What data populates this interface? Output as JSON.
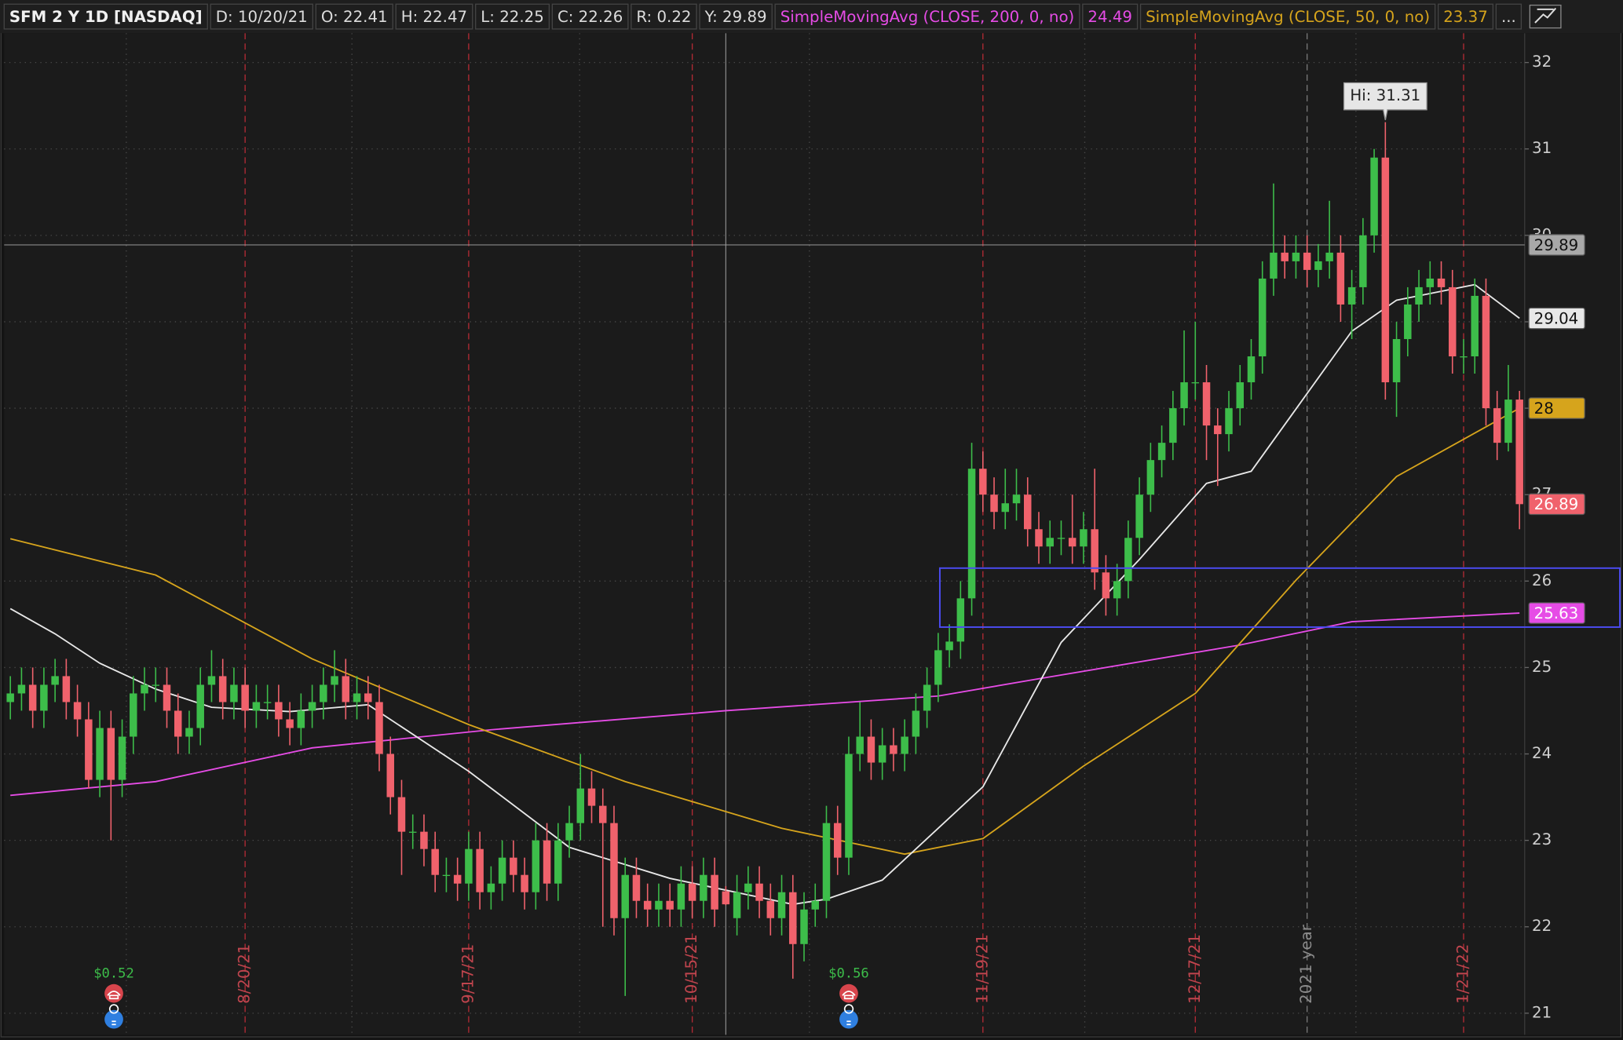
{
  "chart_data": {
    "type": "candlestick",
    "header": {
      "symbol": "SFM 2 Y 1D [NASDAQ]",
      "fields": [
        "D: 10/20/21",
        "O: 22.41",
        "H: 22.47",
        "L: 22.25",
        "C: 22.26",
        "R: 0.22",
        "Y: 29.89"
      ],
      "more": "..."
    },
    "categories": [
      null,
      null,
      null,
      null,
      null,
      null,
      null,
      null,
      null,
      null,
      null,
      null,
      null,
      null,
      null,
      null,
      null,
      null,
      null,
      null,
      null,
      "8/20/21",
      null,
      null,
      null,
      null,
      null,
      null,
      null,
      null,
      null,
      null,
      null,
      null,
      null,
      null,
      null,
      null,
      null,
      null,
      null,
      "9/17/21",
      null,
      null,
      null,
      null,
      null,
      null,
      null,
      null,
      null,
      null,
      null,
      null,
      null,
      null,
      null,
      null,
      null,
      null,
      null,
      "10/15/21",
      null,
      null,
      null,
      null,
      null,
      null,
      null,
      null,
      null,
      null,
      null,
      null,
      null,
      null,
      null,
      null,
      null,
      null,
      null,
      null,
      null,
      null,
      null,
      null,
      null,
      "11/19/21",
      null,
      null,
      null,
      null,
      null,
      null,
      null,
      null,
      null,
      null,
      null,
      null,
      null,
      null,
      null,
      null,
      null,
      null,
      "12/17/21",
      null,
      null,
      null,
      null,
      null,
      null,
      null,
      null,
      null,
      "2021 year",
      null,
      null,
      null,
      null,
      null,
      null,
      null,
      null,
      null,
      null,
      null,
      null,
      null,
      "1/21/22",
      null,
      null,
      null,
      null,
      null
    ],
    "open": [
      24.6,
      24.7,
      24.8,
      24.5,
      24.8,
      24.9,
      24.6,
      24.4,
      23.7,
      24.3,
      23.7,
      24.2,
      24.7,
      24.8,
      24.8,
      24.5,
      24.2,
      24.3,
      24.8,
      24.9,
      24.6,
      24.8,
      24.5,
      24.6,
      24.6,
      24.4,
      24.3,
      24.5,
      24.6,
      24.8,
      24.9,
      24.6,
      24.7,
      24.6,
      24.0,
      23.5,
      23.1,
      23.1,
      22.9,
      22.6,
      22.6,
      22.5,
      22.9,
      22.4,
      22.5,
      22.8,
      22.6,
      22.4,
      23.0,
      22.5,
      23.0,
      23.2,
      23.6,
      23.4,
      23.2,
      22.1,
      22.6,
      22.3,
      22.2,
      22.3,
      22.2,
      22.5,
      22.3,
      22.6,
      22.41,
      22.1,
      22.4,
      22.5,
      22.3,
      22.1,
      22.4,
      21.8,
      22.2,
      22.3,
      23.2,
      22.8,
      24.0,
      24.2,
      23.9,
      24.1,
      24.0,
      24.2,
      24.5,
      24.8,
      25.2,
      25.3,
      25.8,
      27.3,
      27.0,
      26.8,
      26.9,
      27.0,
      26.6,
      26.4,
      26.5,
      26.5,
      26.4,
      26.6,
      26.1,
      25.8,
      26.0,
      26.5,
      27.0,
      27.4,
      27.6,
      28.0,
      28.3,
      28.3,
      27.8,
      27.7,
      28.0,
      28.3,
      28.6,
      29.5,
      29.8,
      29.7,
      29.8,
      29.6,
      29.7,
      29.8,
      29.2,
      29.4,
      30.0,
      30.9,
      28.3,
      28.8,
      29.2,
      29.4,
      29.5,
      29.4,
      28.6,
      28.6,
      29.3,
      28.0,
      27.6,
      28.1
    ],
    "high": [
      24.9,
      25.0,
      25.0,
      25.0,
      25.1,
      25.1,
      24.8,
      24.6,
      24.5,
      24.5,
      24.4,
      24.9,
      25.0,
      25.0,
      25.0,
      24.7,
      24.5,
      25.0,
      25.2,
      25.1,
      25.0,
      25.0,
      24.8,
      24.8,
      24.8,
      24.6,
      24.7,
      24.8,
      25.0,
      25.2,
      25.1,
      24.9,
      24.9,
      24.8,
      24.2,
      23.7,
      23.3,
      23.3,
      23.1,
      22.8,
      22.8,
      23.1,
      23.1,
      22.7,
      23.0,
      23.0,
      22.8,
      23.2,
      23.2,
      23.2,
      23.4,
      24.0,
      23.8,
      23.6,
      23.4,
      22.8,
      22.8,
      22.5,
      22.5,
      22.5,
      22.7,
      22.7,
      22.8,
      22.8,
      22.47,
      22.6,
      22.7,
      22.7,
      22.5,
      22.6,
      22.6,
      22.4,
      22.5,
      23.4,
      23.4,
      24.2,
      24.6,
      24.4,
      24.3,
      24.3,
      24.4,
      24.7,
      25.0,
      25.4,
      25.5,
      26.0,
      27.6,
      27.5,
      27.2,
      27.3,
      27.3,
      27.2,
      26.8,
      26.7,
      26.7,
      27.0,
      26.8,
      27.3,
      26.3,
      26.2,
      26.7,
      27.2,
      27.6,
      27.8,
      28.2,
      28.9,
      29.0,
      28.5,
      28.0,
      28.2,
      28.5,
      28.8,
      29.7,
      30.6,
      30.0,
      30.0,
      30.0,
      29.9,
      30.4,
      30.0,
      29.6,
      30.2,
      31.0,
      31.31,
      29.0,
      29.4,
      29.6,
      29.7,
      29.7,
      29.6,
      28.8,
      29.5,
      29.5,
      28.2,
      28.5,
      28.2
    ],
    "low": [
      24.4,
      24.5,
      24.3,
      24.3,
      24.6,
      24.4,
      24.2,
      23.6,
      23.5,
      23.0,
      23.5,
      24.0,
      24.5,
      24.6,
      24.3,
      24.0,
      24.0,
      24.1,
      24.6,
      24.4,
      24.4,
      24.3,
      24.3,
      24.4,
      24.2,
      24.1,
      24.1,
      24.3,
      24.4,
      24.6,
      24.4,
      24.4,
      24.4,
      23.8,
      23.3,
      22.6,
      22.9,
      22.7,
      22.4,
      22.4,
      22.3,
      22.3,
      22.2,
      22.2,
      22.3,
      22.4,
      22.2,
      22.2,
      22.3,
      22.3,
      22.8,
      23.0,
      23.2,
      22.0,
      21.9,
      21.2,
      22.1,
      22.0,
      22.0,
      22.0,
      22.0,
      22.1,
      22.1,
      22.0,
      22.25,
      21.9,
      22.2,
      22.1,
      21.9,
      21.9,
      21.4,
      21.6,
      22.0,
      22.1,
      22.6,
      22.6,
      23.8,
      23.7,
      23.7,
      23.8,
      23.8,
      24.0,
      24.3,
      24.6,
      25.0,
      25.1,
      25.6,
      26.8,
      26.6,
      26.6,
      26.7,
      26.4,
      26.2,
      26.2,
      26.3,
      26.2,
      26.2,
      25.9,
      25.6,
      25.6,
      25.8,
      26.3,
      26.8,
      27.2,
      27.4,
      27.8,
      28.1,
      27.4,
      27.1,
      27.5,
      27.8,
      28.1,
      28.4,
      29.3,
      29.5,
      29.5,
      29.4,
      29.4,
      29.5,
      29.0,
      28.8,
      29.2,
      29.8,
      28.1,
      27.9,
      28.6,
      29.0,
      29.2,
      29.2,
      28.4,
      28.4,
      28.4,
      27.8,
      27.4,
      27.5,
      26.6
    ],
    "close": [
      24.7,
      24.8,
      24.5,
      24.8,
      24.9,
      24.6,
      24.4,
      23.7,
      24.3,
      23.7,
      24.2,
      24.7,
      24.8,
      24.8,
      24.5,
      24.2,
      24.3,
      24.8,
      24.9,
      24.6,
      24.8,
      24.5,
      24.6,
      24.6,
      24.4,
      24.3,
      24.5,
      24.6,
      24.8,
      24.9,
      24.6,
      24.7,
      24.6,
      24.0,
      23.5,
      23.1,
      23.1,
      22.9,
      22.6,
      22.6,
      22.5,
      22.9,
      22.4,
      22.5,
      22.8,
      22.6,
      22.4,
      23.0,
      22.5,
      23.0,
      23.2,
      23.6,
      23.4,
      23.2,
      22.1,
      22.6,
      22.3,
      22.2,
      22.3,
      22.2,
      22.5,
      22.3,
      22.6,
      22.2,
      22.26,
      22.4,
      22.5,
      22.3,
      22.1,
      22.4,
      21.8,
      22.2,
      22.3,
      23.2,
      22.8,
      24.0,
      24.2,
      23.9,
      24.1,
      24.0,
      24.2,
      24.5,
      24.8,
      25.2,
      25.3,
      25.8,
      27.3,
      27.0,
      26.8,
      26.9,
      27.0,
      26.6,
      26.4,
      26.5,
      26.5,
      26.4,
      26.6,
      26.1,
      25.8,
      26.0,
      26.5,
      27.0,
      27.4,
      27.6,
      28.0,
      28.3,
      28.3,
      27.8,
      27.7,
      28.0,
      28.3,
      28.6,
      29.5,
      29.8,
      29.7,
      29.8,
      29.6,
      29.7,
      29.8,
      29.2,
      29.4,
      30.0,
      30.9,
      28.3,
      28.8,
      29.2,
      29.4,
      29.5,
      29.4,
      28.6,
      28.6,
      29.3,
      28.0,
      27.6,
      28.1,
      26.89
    ],
    "up_color": "#3dbd4a",
    "down_color": "#f0626c",
    "series": [
      {
        "name": "SimpleMovingAvg (CLOSE, 200, 0, no)",
        "readout": "24.49",
        "color": "#e64ce6",
        "x": [
          0,
          13,
          27,
          43,
          64,
          83,
          92,
          110,
          120,
          135
        ],
        "values": [
          23.52,
          23.68,
          24.07,
          24.28,
          24.5,
          24.67,
          24.87,
          25.26,
          25.53,
          25.63
        ]
      },
      {
        "name": "SimpleMovingAvg (CLOSE, 50, 0, no)",
        "readout": "23.37",
        "color": "#d6a41c",
        "x": [
          0,
          13,
          27,
          41,
          55,
          69,
          80,
          87,
          96,
          106,
          115,
          124,
          135
        ],
        "values": [
          26.49,
          26.07,
          25.1,
          24.34,
          23.68,
          23.14,
          22.84,
          23.02,
          23.86,
          24.7,
          26.01,
          27.21,
          28
        ]
      },
      {
        "color": "#e8e8e8",
        "x": [
          0,
          4,
          8,
          13,
          18,
          25,
          32,
          41,
          50,
          59,
          70,
          73,
          78,
          87,
          94,
          101,
          107,
          111,
          115,
          120,
          124,
          131,
          135
        ],
        "values": [
          25.68,
          25.39,
          25.05,
          24.75,
          24.54,
          24.49,
          24.57,
          23.8,
          22.92,
          22.56,
          22.26,
          22.32,
          22.54,
          23.62,
          25.29,
          26.25,
          27.13,
          27.27,
          27.99,
          28.89,
          29.25,
          29.43,
          29.04
        ]
      }
    ],
    "crosshair_price": 29.89,
    "hi_label": "Hi: 31.31",
    "dividends": [
      "$0.52",
      "$0.56"
    ],
    "ylim": [
      20.75,
      32.34
    ],
    "yticks": [
      21,
      22,
      23,
      24,
      25,
      26,
      27,
      28,
      29,
      30,
      31,
      32
    ],
    "grid": true
  }
}
